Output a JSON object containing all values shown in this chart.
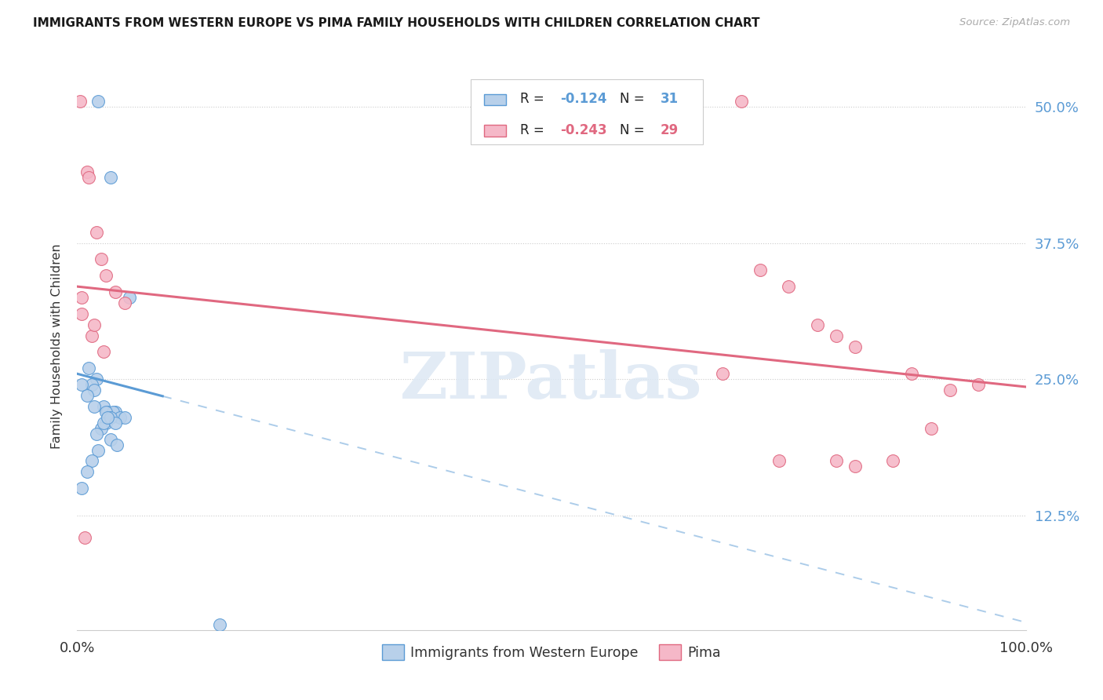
{
  "title": "IMMIGRANTS FROM WESTERN EUROPE VS PIMA FAMILY HOUSEHOLDS WITH CHILDREN CORRELATION CHART",
  "source": "Source: ZipAtlas.com",
  "ylabel": "Family Households with Children",
  "xmin": 0.0,
  "xmax": 100.0,
  "ymin": 2.0,
  "ymax": 54.0,
  "ytick_vals": [
    12.5,
    25.0,
    37.5,
    50.0
  ],
  "ytick_labels": [
    "12.5%",
    "25.0%",
    "37.5%",
    "50.0%"
  ],
  "legend_r_blue_val": "-0.124",
  "legend_n_blue_val": "31",
  "legend_r_pink_val": "-0.243",
  "legend_n_pink_val": "29",
  "blue_label": "Immigrants from Western Europe",
  "pink_label": "Pima",
  "watermark": "ZIPatlas",
  "blue_fill": "#b8d0ea",
  "blue_edge": "#5b9bd5",
  "pink_fill": "#f5b8c8",
  "pink_edge": "#e06880",
  "blue_scatter_x": [
    2.2,
    3.5,
    5.5,
    1.2,
    2.0,
    1.5,
    0.5,
    1.8,
    1.0,
    2.8,
    3.2,
    4.0,
    3.8,
    4.5,
    5.0,
    3.0,
    2.5,
    2.0,
    3.5,
    4.2,
    2.2,
    1.5,
    1.0,
    0.5,
    1.8,
    2.8,
    3.0,
    3.5,
    4.0,
    3.2,
    15.0
  ],
  "blue_scatter_y": [
    50.5,
    43.5,
    32.5,
    26.0,
    25.0,
    24.5,
    24.5,
    24.0,
    23.5,
    22.5,
    22.0,
    22.0,
    22.0,
    21.5,
    21.5,
    21.0,
    20.5,
    20.0,
    19.5,
    19.0,
    18.5,
    17.5,
    16.5,
    15.0,
    22.5,
    21.0,
    22.0,
    21.5,
    21.0,
    21.5,
    2.5
  ],
  "pink_scatter_x": [
    0.3,
    1.0,
    1.2,
    2.0,
    2.5,
    3.0,
    4.0,
    5.0,
    0.5,
    1.5,
    2.8,
    0.8,
    70.0,
    72.0,
    75.0,
    78.0,
    80.0,
    82.0,
    88.0,
    92.0,
    95.0,
    68.0,
    74.0,
    80.0,
    82.0,
    86.0,
    90.0,
    0.5,
    1.8
  ],
  "pink_scatter_y": [
    50.5,
    44.0,
    43.5,
    38.5,
    36.0,
    34.5,
    33.0,
    32.0,
    31.0,
    29.0,
    27.5,
    10.5,
    50.5,
    35.0,
    33.5,
    30.0,
    29.0,
    28.0,
    25.5,
    24.0,
    24.5,
    25.5,
    17.5,
    17.5,
    17.0,
    17.5,
    20.5,
    32.5,
    30.0
  ],
  "blue_reg_intercept": 25.5,
  "blue_reg_slope": -0.228,
  "blue_solid_end": 9.0,
  "pink_reg_intercept": 33.5,
  "pink_reg_slope": -0.092
}
